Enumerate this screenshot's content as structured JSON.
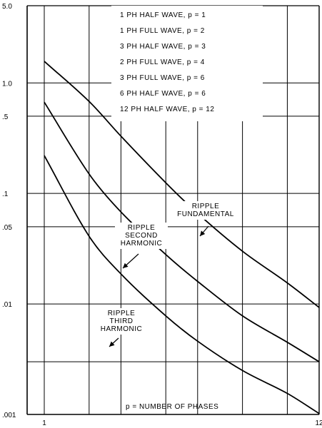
{
  "chart_data": {
    "type": "line",
    "title": "",
    "xlabel": "p = NUMBER OF PHASES",
    "ylabel": "",
    "x_scale": "log",
    "y_scale": "log",
    "xlim": [
      1,
      12
    ],
    "ylim": [
      0.001,
      5.0
    ],
    "grid": true,
    "y_ticks": [
      "5.0",
      "1.0",
      ".5",
      ".1",
      ".05",
      ".01",
      ".001"
    ],
    "x_ticks": [
      "1",
      "12"
    ],
    "legend_placement": "top-right",
    "legend": [
      "1 PH  HALF  WAVE,  p = 1",
      "1 PH  FULL  WAVE,  p = 2",
      "3 PH  HALF  WAVE,  p = 3",
      "2 PH  FULL  WAVE,  p = 4",
      "3 PH  FULL  WAVE,  p = 6",
      "6 PH  HALF  WAVE,  p = 6",
      "12 PH  HALF  WAVE,  p = 12"
    ],
    "series": [
      {
        "name": "RIPPLE FUNDAMENTAL",
        "label_lines": [
          "RIPPLE",
          "FUNDAMENTAL"
        ],
        "points": [
          [
            1,
            1.57
          ],
          [
            1.5,
            0.68
          ],
          [
            2,
            0.33
          ],
          [
            3,
            0.125
          ],
          [
            4,
            0.066
          ],
          [
            6,
            0.03
          ],
          [
            9,
            0.0155
          ],
          [
            12,
            0.0093
          ]
        ]
      },
      {
        "name": "RIPPLE SECOND HARMONIC",
        "label_lines": [
          "RIPPLE",
          "SECOND",
          "HARMONIC"
        ],
        "points": [
          [
            1,
            0.67
          ],
          [
            1.5,
            0.15
          ],
          [
            2,
            0.068
          ],
          [
            3,
            0.028
          ],
          [
            4,
            0.016
          ],
          [
            6,
            0.0078
          ],
          [
            9,
            0.0045
          ],
          [
            12,
            0.003
          ]
        ]
      },
      {
        "name": "RIPPLE THIRD HARMONIC",
        "label_lines": [
          "RIPPLE",
          "THIRD",
          "HARMONIC"
        ],
        "points": [
          [
            1,
            0.22
          ],
          [
            1.5,
            0.041
          ],
          [
            2,
            0.0187
          ],
          [
            3,
            0.0078
          ],
          [
            4,
            0.0046
          ],
          [
            6,
            0.0025
          ],
          [
            9,
            0.00155
          ],
          [
            12,
            0.00102
          ]
        ]
      }
    ]
  }
}
